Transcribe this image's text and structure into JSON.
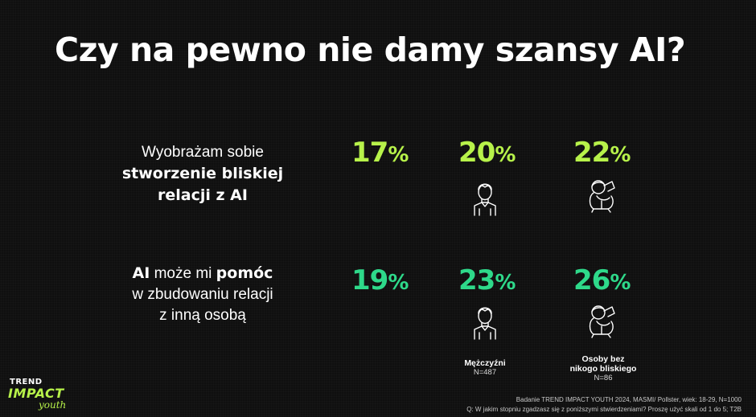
{
  "title": "Czy na pewno nie damy szansy AI?",
  "statements": [
    {
      "line1": "Wyobrażam sobie",
      "line2_bold": "stworzenie bliskiej",
      "line3_bold": "relacji z AI"
    },
    {
      "ai_bold": "AI",
      "line1_mid": " może mi ",
      "pomoc_bold": "pomóc",
      "line2": "w zbudowaniu relacji",
      "line3": "z inną osobą"
    }
  ],
  "rows": [
    {
      "values": [
        {
          "number": "17",
          "sign": "%",
          "color": "#b7f24a"
        },
        {
          "number": "20",
          "sign": "%",
          "color": "#b7f24a"
        },
        {
          "number": "22",
          "sign": "%",
          "color": "#b7f24a"
        }
      ]
    },
    {
      "values": [
        {
          "number": "19",
          "sign": "%",
          "color": "#2ed98a"
        },
        {
          "number": "23",
          "sign": "%",
          "color": "#2ed98a"
        },
        {
          "number": "26",
          "sign": "%",
          "color": "#2ed98a"
        }
      ]
    }
  ],
  "groups": [
    {
      "label": "Mężczyźni",
      "n": "N=487",
      "icon": "man-icon"
    },
    {
      "label_line1": "Osoby bez",
      "label_line2": "nikogo bliskiego",
      "n": "N=86",
      "icon": "lonely-person-icon"
    }
  ],
  "logo": {
    "line1": "TREND",
    "line2": "IMPACT",
    "line3": "youth"
  },
  "source": {
    "line1": "Badanie TREND IMPACT YOUTH 2024, MASMI/ Pollster, wiek: 18-29, N=1000",
    "line2": "Q: W jakim stopniu zgadzasz się z poniższymi stwierdzeniami? Proszę użyć skali od 1 do 5; T2B"
  }
}
